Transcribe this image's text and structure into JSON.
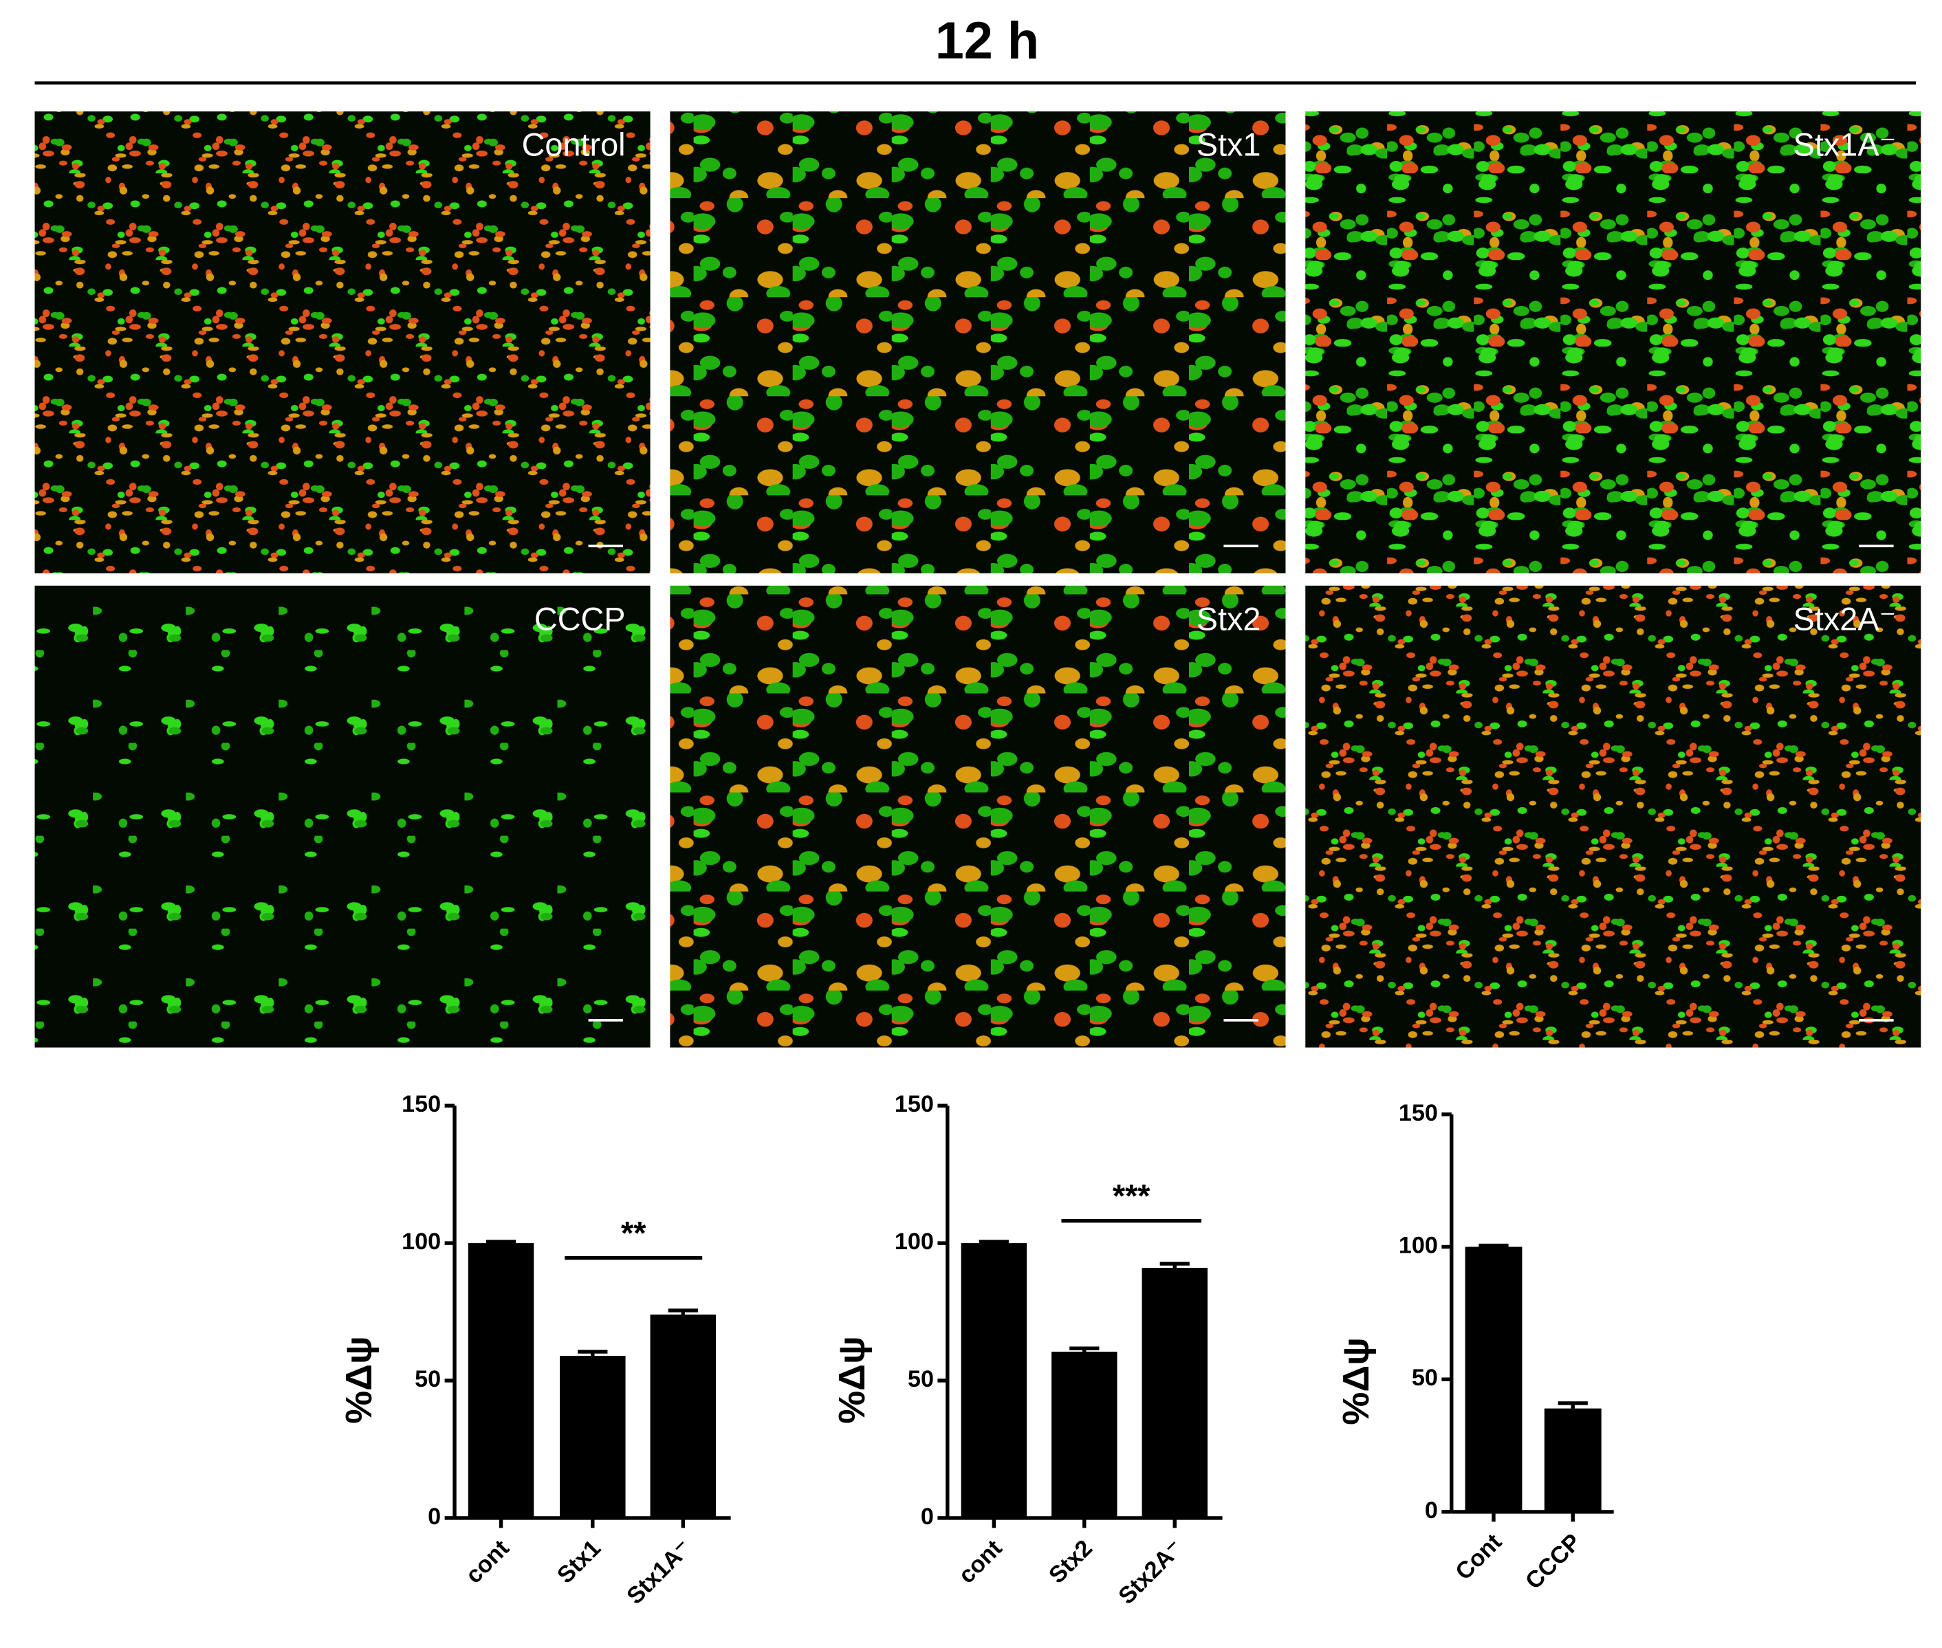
{
  "title": "12 h",
  "panels": [
    "Control",
    "Stx1",
    "Stx1A⁻",
    "CCCP",
    "Stx2",
    "Stx2A⁻"
  ],
  "chart_data": [
    {
      "type": "bar",
      "ylabel": "%Δψ",
      "categories": [
        "cont",
        "Stx1",
        "Stx1A⁻"
      ],
      "values": [
        100,
        59,
        74
      ],
      "errors": [
        0.5,
        1.5,
        1.5
      ],
      "color": "#000000",
      "ylim": [
        0,
        150
      ],
      "yticks": [
        0,
        50,
        100,
        150
      ],
      "annotation": "**"
    },
    {
      "type": "bar",
      "ylabel": "%Δψ",
      "categories": [
        "cont",
        "Stx2",
        "Stx2A⁻"
      ],
      "values": [
        100,
        60.5,
        91
      ],
      "errors": [
        0.5,
        1.2,
        1.5
      ],
      "color": "#000000",
      "ylim": [
        0,
        150
      ],
      "yticks": [
        0,
        50,
        100,
        150
      ],
      "annotation": "***"
    },
    {
      "type": "bar",
      "ylabel": "%Δψ",
      "categories": [
        "Cont",
        "CCCP"
      ],
      "values": [
        100,
        39
      ],
      "errors": [
        0.5,
        2
      ],
      "color": "#000000",
      "ylim": [
        0,
        150
      ],
      "yticks": [
        0,
        50,
        100,
        150
      ]
    }
  ]
}
